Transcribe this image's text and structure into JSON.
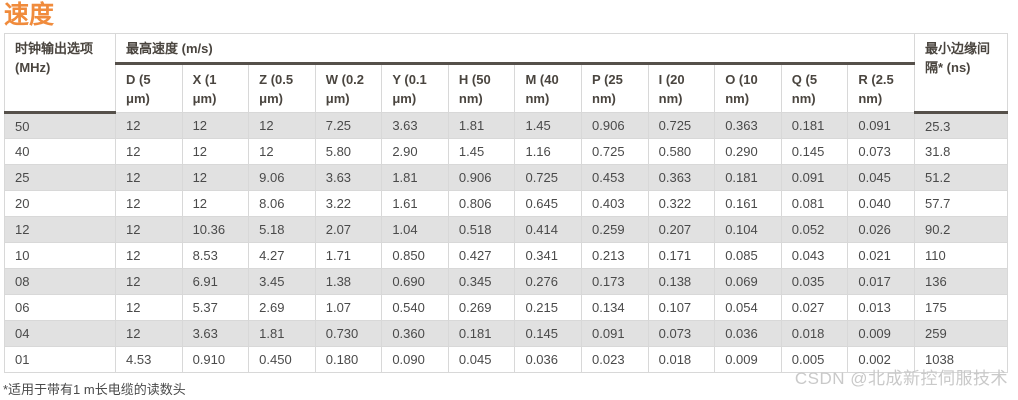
{
  "page": {
    "title": "速度",
    "footnote": "*适用于带有1 m长电缆的读数头",
    "watermark": "CSDN @北成新控伺服技术"
  },
  "colors": {
    "accent_orange": "#f08b3c",
    "header_text": "#4a453f",
    "body_text": "#4a4a4a",
    "stripe_gray": "#e1e1e1",
    "thin_border": "#d8d8d8",
    "thick_border": "#55504a",
    "watermark_gray": "#c9c9c9"
  },
  "table": {
    "clock_header": "时钟输出选项 (MHz)",
    "speed_header": "最高速度 (m/s)",
    "edge_header": "最小边缘间隔* (ns)",
    "sub_headers": [
      "D (5 μm)",
      "X (1 μm)",
      "Z (0.5 μm)",
      "W (0.2 μm)",
      "Y (0.1 μm)",
      "H (50 nm)",
      "M (40 nm)",
      "P (25 nm)",
      "I (20 nm)",
      "O (10 nm)",
      "Q (5 nm)",
      "R (2.5 nm)"
    ],
    "rows": [
      {
        "clock": "50",
        "speeds": [
          "12",
          "12",
          "12",
          "7.25",
          "3.63",
          "1.81",
          "1.45",
          "0.906",
          "0.725",
          "0.363",
          "0.181",
          "0.091"
        ],
        "edge": "25.3"
      },
      {
        "clock": "40",
        "speeds": [
          "12",
          "12",
          "12",
          "5.80",
          "2.90",
          "1.45",
          "1.16",
          "0.725",
          "0.580",
          "0.290",
          "0.145",
          "0.073"
        ],
        "edge": "31.8"
      },
      {
        "clock": "25",
        "speeds": [
          "12",
          "12",
          "9.06",
          "3.63",
          "1.81",
          "0.906",
          "0.725",
          "0.453",
          "0.363",
          "0.181",
          "0.091",
          "0.045"
        ],
        "edge": "51.2"
      },
      {
        "clock": "20",
        "speeds": [
          "12",
          "12",
          "8.06",
          "3.22",
          "1.61",
          "0.806",
          "0.645",
          "0.403",
          "0.322",
          "0.161",
          "0.081",
          "0.040"
        ],
        "edge": "57.7"
      },
      {
        "clock": "12",
        "speeds": [
          "12",
          "10.36",
          "5.18",
          "2.07",
          "1.04",
          "0.518",
          "0.414",
          "0.259",
          "0.207",
          "0.104",
          "0.052",
          "0.026"
        ],
        "edge": "90.2"
      },
      {
        "clock": "10",
        "speeds": [
          "12",
          "8.53",
          "4.27",
          "1.71",
          "0.850",
          "0.427",
          "0.341",
          "0.213",
          "0.171",
          "0.085",
          "0.043",
          "0.021"
        ],
        "edge": "110"
      },
      {
        "clock": "08",
        "speeds": [
          "12",
          "6.91",
          "3.45",
          "1.38",
          "0.690",
          "0.345",
          "0.276",
          "0.173",
          "0.138",
          "0.069",
          "0.035",
          "0.017"
        ],
        "edge": "136"
      },
      {
        "clock": "06",
        "speeds": [
          "12",
          "5.37",
          "2.69",
          "1.07",
          "0.540",
          "0.269",
          "0.215",
          "0.134",
          "0.107",
          "0.054",
          "0.027",
          "0.013"
        ],
        "edge": "175"
      },
      {
        "clock": "04",
        "speeds": [
          "12",
          "3.63",
          "1.81",
          "0.730",
          "0.360",
          "0.181",
          "0.145",
          "0.091",
          "0.073",
          "0.036",
          "0.018",
          "0.009"
        ],
        "edge": "259"
      },
      {
        "clock": "01",
        "speeds": [
          "4.53",
          "0.910",
          "0.450",
          "0.180",
          "0.090",
          "0.045",
          "0.036",
          "0.023",
          "0.018",
          "0.009",
          "0.005",
          "0.002"
        ],
        "edge": "1038"
      }
    ]
  }
}
